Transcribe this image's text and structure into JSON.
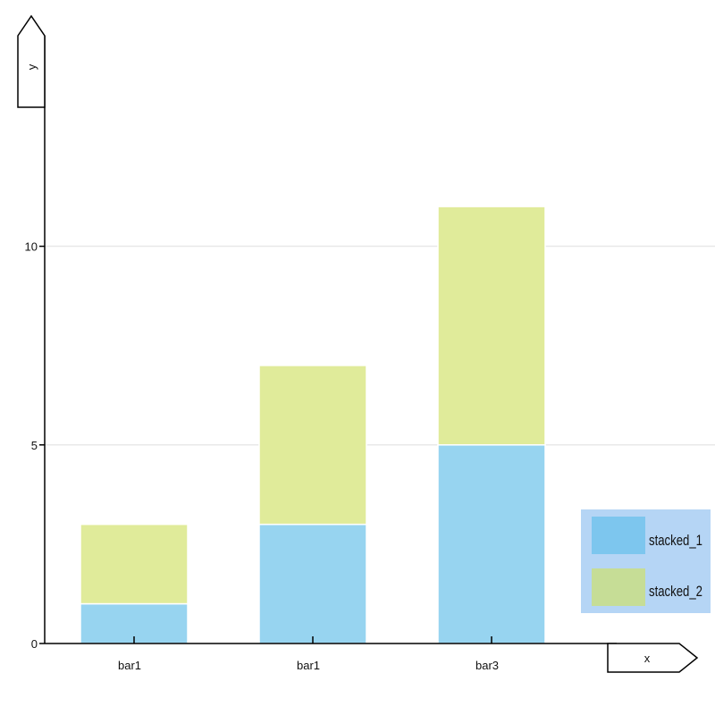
{
  "chart_data": {
    "type": "bar",
    "stacked": true,
    "categories": [
      "bar1",
      "bar1",
      "bar3"
    ],
    "series": [
      {
        "name": "stacked_1",
        "values": [
          1,
          3,
          5
        ],
        "color": "#97d4f0",
        "legend_color": "#7dc6ee"
      },
      {
        "name": "stacked_2",
        "values": [
          2,
          4,
          6
        ],
        "color": "#e0eb9a",
        "legend_color": "#c6dd96"
      }
    ],
    "xlabel": "x",
    "ylabel": "y",
    "yticks": [
      0,
      5,
      10
    ],
    "ylim": [
      0,
      15.3
    ],
    "grid": true,
    "legend_position": "bottom-right",
    "legend_background": "#b5d5f5"
  }
}
